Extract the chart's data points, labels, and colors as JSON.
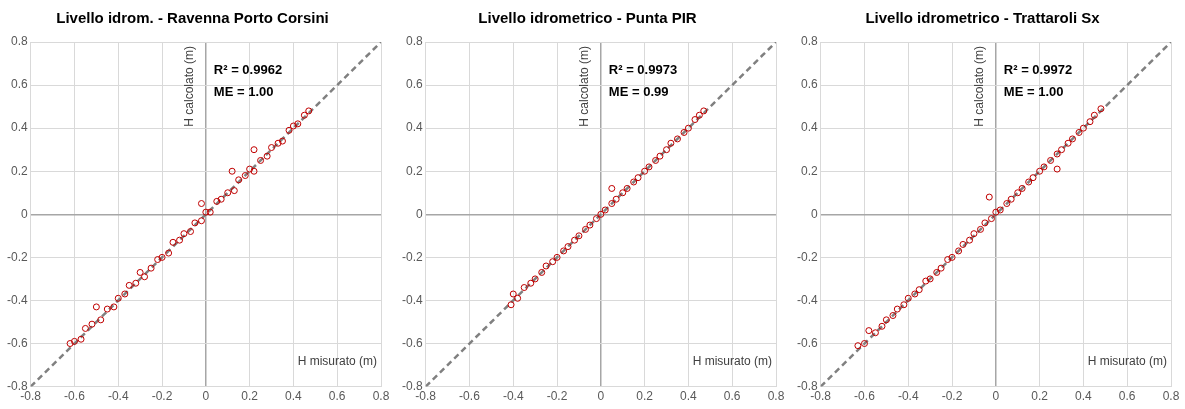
{
  "chart_data": [
    {
      "type": "scatter",
      "title": "Livello idrom. - Ravenna Porto Corsini",
      "xlabel": "H misurato (m)",
      "ylabel": "H calcolato (m)",
      "annotations": [
        "R² = 0.9962",
        "ME = 1.00"
      ],
      "xlim": [
        -0.8,
        0.8
      ],
      "ylim": [
        -0.8,
        0.8
      ],
      "xticks": [
        -0.8,
        -0.6,
        -0.4,
        -0.2,
        0,
        0.2,
        0.4,
        0.6,
        0.8
      ],
      "yticks": [
        -0.8,
        -0.6,
        -0.4,
        -0.2,
        0,
        0.2,
        0.4,
        0.6,
        0.8
      ],
      "grid": true,
      "marker": "circle",
      "series": [
        {
          "color": "#c00000",
          "x": [
            -0.62,
            -0.6,
            -0.57,
            -0.55,
            -0.52,
            -0.5,
            -0.48,
            -0.45,
            -0.42,
            -0.4,
            -0.37,
            -0.35,
            -0.32,
            -0.3,
            -0.28,
            -0.25,
            -0.22,
            -0.2,
            -0.17,
            -0.15,
            -0.12,
            -0.1,
            -0.07,
            -0.05,
            -0.02,
            -0.02,
            0,
            0.02,
            0.05,
            0.07,
            0.1,
            0.12,
            0.13,
            0.15,
            0.18,
            0.2,
            0.22,
            0.22,
            0.25,
            0.28,
            0.3,
            0.33,
            0.35,
            0.38,
            0.4,
            0.42,
            0.45,
            0.47
          ],
          "values": [
            -0.6,
            -0.59,
            -0.58,
            -0.53,
            -0.51,
            -0.43,
            -0.49,
            -0.44,
            -0.43,
            -0.39,
            -0.37,
            -0.33,
            -0.32,
            -0.27,
            -0.29,
            -0.25,
            -0.21,
            -0.2,
            -0.18,
            -0.13,
            -0.12,
            -0.09,
            -0.08,
            -0.04,
            0.05,
            -0.03,
            0.01,
            0.01,
            0.06,
            0.07,
            0.1,
            0.2,
            0.11,
            0.16,
            0.18,
            0.21,
            0.3,
            0.2,
            0.25,
            0.27,
            0.31,
            0.33,
            0.34,
            0.39,
            0.41,
            0.42,
            0.46,
            0.48
          ]
        },
        {
          "type": "line",
          "color": "#808080",
          "line_style": "dashed",
          "marker": "none",
          "x": [
            -0.8,
            0.8
          ],
          "values": [
            -0.8,
            0.8
          ]
        }
      ]
    },
    {
      "type": "scatter",
      "title": "Livello idrometrico - Punta PIR",
      "xlabel": "H misurato (m)",
      "ylabel": "H calcolato (m)",
      "annotations": [
        "R² = 0.9973",
        "ME = 0.99"
      ],
      "xlim": [
        -0.8,
        0.8
      ],
      "ylim": [
        -0.8,
        0.8
      ],
      "xticks": [
        -0.8,
        -0.6,
        -0.4,
        -0.2,
        0,
        0.2,
        0.4,
        0.6,
        0.8
      ],
      "yticks": [
        -0.8,
        -0.6,
        -0.4,
        -0.2,
        0,
        0.2,
        0.4,
        0.6,
        0.8
      ],
      "grid": true,
      "marker": "circle",
      "series": [
        {
          "color": "#c00000",
          "x": [
            -0.41,
            -0.4,
            -0.38,
            -0.35,
            -0.32,
            -0.3,
            -0.27,
            -0.25,
            -0.22,
            -0.2,
            -0.17,
            -0.15,
            -0.12,
            -0.1,
            -0.07,
            -0.05,
            -0.02,
            0,
            0.02,
            0.05,
            0.05,
            0.07,
            0.1,
            0.12,
            0.15,
            0.17,
            0.2,
            0.22,
            0.25,
            0.27,
            0.3,
            0.32,
            0.35,
            0.38,
            0.4,
            0.43,
            0.45,
            0.47
          ],
          "values": [
            -0.42,
            -0.37,
            -0.39,
            -0.34,
            -0.32,
            -0.3,
            -0.27,
            -0.24,
            -0.22,
            -0.2,
            -0.17,
            -0.15,
            -0.12,
            -0.1,
            -0.07,
            -0.05,
            -0.02,
            0,
            0.02,
            0.05,
            0.12,
            0.07,
            0.1,
            0.12,
            0.15,
            0.17,
            0.2,
            0.22,
            0.25,
            0.27,
            0.3,
            0.33,
            0.35,
            0.38,
            0.4,
            0.44,
            0.46,
            0.48
          ]
        },
        {
          "type": "line",
          "color": "#808080",
          "line_style": "dashed",
          "marker": "none",
          "x": [
            -0.8,
            0.8
          ],
          "values": [
            -0.8,
            0.8
          ]
        }
      ]
    },
    {
      "type": "scatter",
      "title": "Livello idrometrico - Trattaroli Sx",
      "xlabel": "H misurato (m)",
      "ylabel": "H calcolato (m)",
      "annotations": [
        "R² = 0.9972",
        "ME = 1.00"
      ],
      "xlim": [
        -0.8,
        0.8
      ],
      "ylim": [
        -0.8,
        0.8
      ],
      "xticks": [
        -0.8,
        -0.6,
        -0.4,
        -0.2,
        0,
        0.2,
        0.4,
        0.6,
        0.8
      ],
      "yticks": [
        -0.8,
        -0.6,
        -0.4,
        -0.2,
        0,
        0.2,
        0.4,
        0.6,
        0.8
      ],
      "grid": true,
      "marker": "circle",
      "series": [
        {
          "color": "#c00000",
          "x": [
            -0.63,
            -0.6,
            -0.58,
            -0.55,
            -0.52,
            -0.5,
            -0.47,
            -0.45,
            -0.42,
            -0.4,
            -0.37,
            -0.35,
            -0.32,
            -0.3,
            -0.27,
            -0.25,
            -0.22,
            -0.2,
            -0.17,
            -0.15,
            -0.12,
            -0.1,
            -0.07,
            -0.05,
            -0.03,
            -0.02,
            0,
            0.02,
            0.05,
            0.07,
            0.1,
            0.12,
            0.15,
            0.17,
            0.2,
            0.22,
            0.25,
            0.28,
            0.28,
            0.3,
            0.33,
            0.35,
            0.38,
            0.4,
            0.43,
            0.45,
            0.48
          ],
          "values": [
            -0.61,
            -0.6,
            -0.54,
            -0.55,
            -0.52,
            -0.49,
            -0.47,
            -0.44,
            -0.42,
            -0.39,
            -0.37,
            -0.35,
            -0.31,
            -0.3,
            -0.27,
            -0.25,
            -0.21,
            -0.2,
            -0.17,
            -0.14,
            -0.12,
            -0.09,
            -0.07,
            -0.04,
            0.08,
            -0.02,
            0.01,
            0.02,
            0.05,
            0.07,
            0.1,
            0.12,
            0.15,
            0.17,
            0.2,
            0.22,
            0.25,
            0.21,
            0.28,
            0.3,
            0.33,
            0.35,
            0.38,
            0.4,
            0.43,
            0.46,
            0.49
          ]
        },
        {
          "type": "line",
          "color": "#808080",
          "line_style": "dashed",
          "marker": "none",
          "x": [
            -0.8,
            0.8
          ],
          "values": [
            -0.8,
            0.8
          ]
        }
      ]
    }
  ]
}
